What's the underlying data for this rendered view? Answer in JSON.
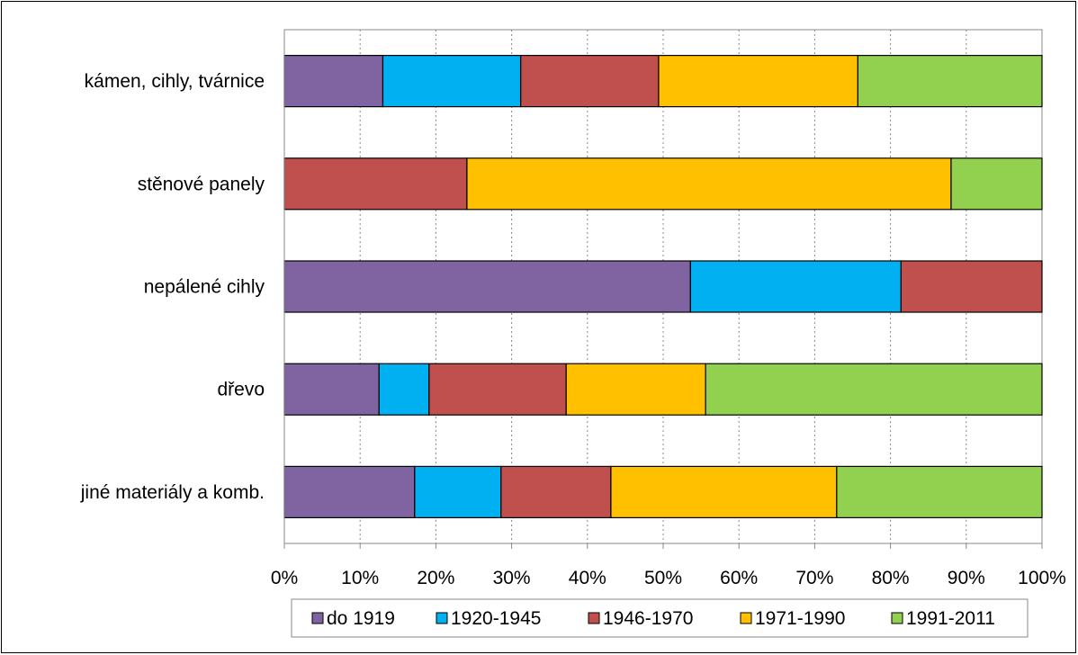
{
  "chart_data": {
    "type": "bar",
    "orientation": "horizontal",
    "stacked": "percent",
    "categories": [
      "kámen, cihly, tvárnice",
      "stěnové panely",
      "nepálené cihly",
      "dřevo",
      "jiné materiály a komb."
    ],
    "series": [
      {
        "name": "do 1919",
        "color": "#8064A2",
        "values": [
          13,
          0,
          53.6,
          12.5,
          17.2
        ]
      },
      {
        "name": "1920-1945",
        "color": "#00B0F0",
        "values": [
          18.2,
          0,
          27.8,
          6.6,
          11.4
        ]
      },
      {
        "name": "1946-1970",
        "color": "#C0504D",
        "values": [
          18.2,
          24.1,
          18.6,
          18.1,
          14.5
        ]
      },
      {
        "name": "1971-1990",
        "color": "#FFC000",
        "values": [
          26.3,
          63.9,
          0,
          18.4,
          29.8
        ]
      },
      {
        "name": "1991-2011",
        "color": "#92D050",
        "values": [
          24.3,
          12,
          0,
          44.4,
          27.1
        ]
      }
    ],
    "x_ticks": [
      "0%",
      "10%",
      "20%",
      "30%",
      "40%",
      "50%",
      "60%",
      "70%",
      "80%",
      "90%",
      "100%"
    ],
    "xlim": [
      0,
      100
    ],
    "grid": "vertical-dotted",
    "legend_position": "bottom"
  }
}
